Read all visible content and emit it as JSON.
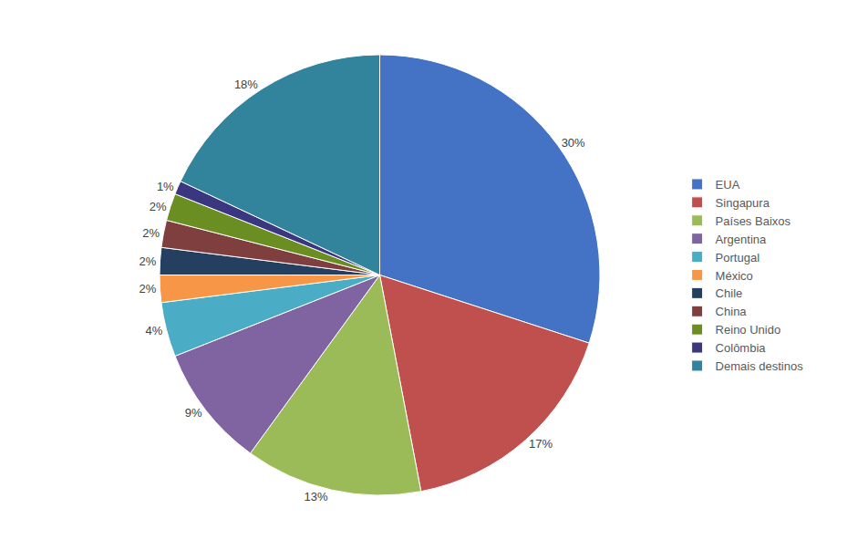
{
  "chart_data": {
    "type": "pie",
    "categories": [
      "EUA",
      "Singapura",
      "Países Baixos",
      "Argentina",
      "Portugal",
      "México",
      "Chile",
      "China",
      "Reino Unido",
      "Colômbia",
      "Demais destinos"
    ],
    "values": [
      30,
      17,
      13,
      9,
      4,
      2,
      2,
      2,
      2,
      1,
      18
    ],
    "value_labels": [
      "30%",
      "17%",
      "13%",
      "9%",
      "4%",
      "2%",
      "2%",
      "2%",
      "2%",
      "1%",
      "18%"
    ],
    "colors": [
      "#4472C4",
      "#C0504D",
      "#9BBB59",
      "#8064A2",
      "#4BACC6",
      "#F79646",
      "#243F60",
      "#7F3F3F",
      "#6B8E23",
      "#3B3680",
      "#31849B"
    ],
    "data_labels": true,
    "legend": "right"
  }
}
